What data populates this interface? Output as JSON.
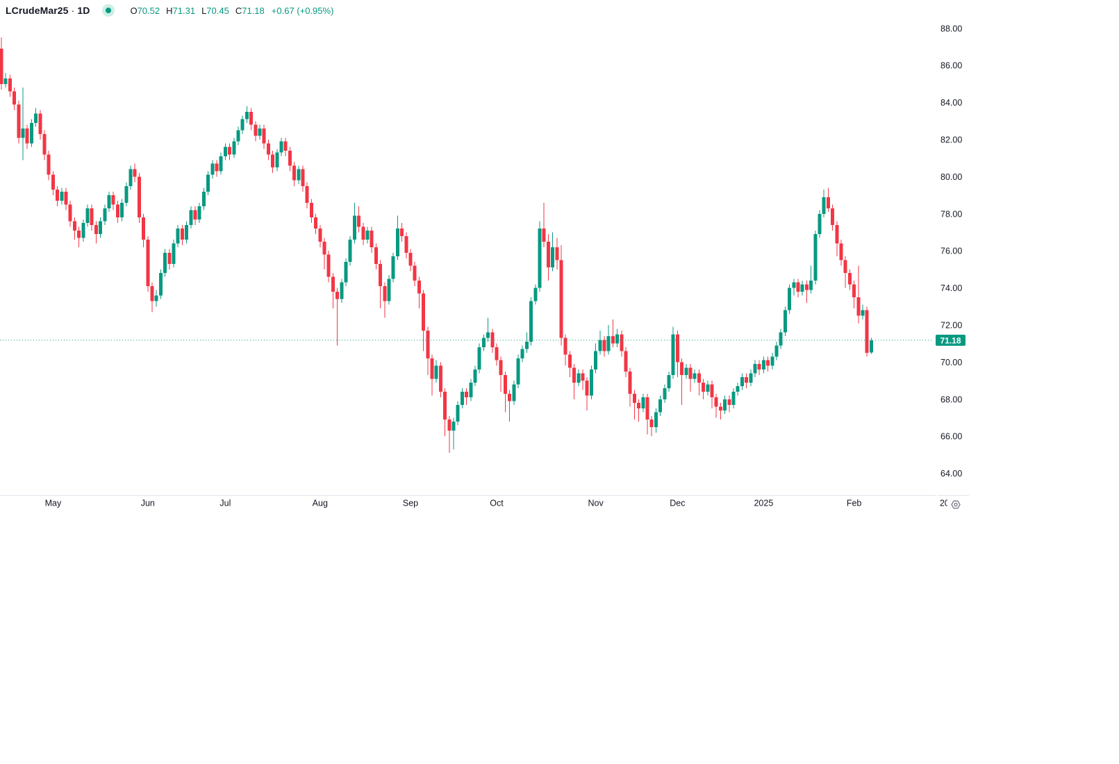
{
  "legend": {
    "symbol": "LCrudeMar25",
    "separator": "·",
    "interval": "1D",
    "open_label": "O",
    "open_value": "70.52",
    "high_label": "H",
    "high_value": "71.31",
    "low_label": "L",
    "low_value": "70.45",
    "close_label": "C",
    "close_value": "71.18",
    "change": "+0.67 (+0.95%)"
  },
  "colors": {
    "up": "#089981",
    "down": "#F23645",
    "text": "#131722",
    "background": "#ffffff",
    "last_price_line": "#089981",
    "tag_background": "#089981",
    "tag_text": "#ffffff",
    "axis_line": "#e0e3eb",
    "gear": "#787b86",
    "status_dot": "#089981"
  },
  "price_axis": {
    "tag": "71.18",
    "labels": [
      {
        "text": "88.00",
        "value": 88
      },
      {
        "text": "86.00",
        "value": 86
      },
      {
        "text": "84.00",
        "value": 84
      },
      {
        "text": "82.00",
        "value": 82
      },
      {
        "text": "80.00",
        "value": 80
      },
      {
        "text": "78.00",
        "value": 78
      },
      {
        "text": "76.00",
        "value": 76
      },
      {
        "text": "74.00",
        "value": 74
      },
      {
        "text": "72.00",
        "value": 72
      },
      {
        "text": "70.00",
        "value": 70
      },
      {
        "text": "68.00",
        "value": 68
      },
      {
        "text": "66.00",
        "value": 66
      },
      {
        "text": "64.00",
        "value": 64
      }
    ]
  },
  "time_axis": {
    "labels": [
      {
        "text": "May",
        "index": 12
      },
      {
        "text": "Jun",
        "index": 34
      },
      {
        "text": "Jul",
        "index": 52
      },
      {
        "text": "Aug",
        "index": 74
      },
      {
        "text": "Sep",
        "index": 95
      },
      {
        "text": "Oct",
        "index": 115
      },
      {
        "text": "Nov",
        "index": 138
      },
      {
        "text": "Dec",
        "index": 157
      },
      {
        "text": "2025",
        "index": 177
      },
      {
        "text": "Feb",
        "index": 198
      },
      {
        "text": "20",
        "index": 219,
        "clipped": true
      }
    ]
  },
  "chart_data": {
    "type": "candlestick",
    "title": "LCrudeMar25 daily candlestick chart, Apr 2024 - Feb 2025",
    "last_price": 71.18,
    "price_axis_range": [
      62.8,
      89.6
    ],
    "grid": false,
    "candles": [
      [
        86.9,
        87.5,
        84.7,
        85.0
      ],
      [
        85.0,
        85.6,
        84.8,
        85.3
      ],
      [
        85.3,
        85.5,
        84.3,
        84.6
      ],
      [
        84.6,
        84.8,
        83.6,
        83.9
      ],
      [
        83.9,
        84.1,
        81.8,
        82.1
      ],
      [
        82.1,
        84.8,
        80.9,
        82.6
      ],
      [
        82.6,
        82.8,
        81.5,
        81.8
      ],
      [
        81.8,
        83.1,
        81.6,
        82.9
      ],
      [
        82.9,
        83.7,
        82.7,
        83.4
      ],
      [
        83.4,
        83.6,
        82.0,
        82.3
      ],
      [
        82.3,
        82.5,
        80.9,
        81.2
      ],
      [
        81.2,
        81.4,
        79.8,
        80.1
      ],
      [
        80.1,
        80.3,
        79.0,
        79.3
      ],
      [
        79.3,
        79.5,
        78.4,
        78.7
      ],
      [
        78.7,
        79.4,
        78.5,
        79.2
      ],
      [
        79.2,
        79.4,
        78.2,
        78.5
      ],
      [
        78.5,
        78.7,
        77.3,
        77.6
      ],
      [
        77.6,
        77.8,
        76.6,
        77.1
      ],
      [
        77.1,
        77.3,
        76.2,
        76.7
      ],
      [
        76.7,
        77.7,
        76.5,
        77.5
      ],
      [
        77.5,
        78.5,
        77.3,
        78.3
      ],
      [
        78.3,
        78.5,
        77.1,
        77.4
      ],
      [
        77.4,
        77.6,
        76.4,
        76.9
      ],
      [
        76.9,
        77.8,
        76.7,
        77.6
      ],
      [
        77.6,
        78.5,
        77.4,
        78.3
      ],
      [
        78.3,
        79.2,
        78.1,
        79.0
      ],
      [
        79.0,
        79.2,
        78.2,
        78.5
      ],
      [
        78.5,
        78.7,
        77.5,
        77.8
      ],
      [
        77.8,
        78.8,
        77.6,
        78.6
      ],
      [
        78.6,
        79.7,
        78.4,
        79.5
      ],
      [
        79.5,
        80.6,
        79.3,
        80.4
      ],
      [
        80.4,
        80.7,
        79.7,
        80.0
      ],
      [
        80.0,
        80.2,
        77.5,
        77.8
      ],
      [
        77.8,
        78.0,
        76.2,
        76.6
      ],
      [
        76.6,
        76.8,
        73.8,
        74.1
      ],
      [
        74.1,
        74.3,
        72.7,
        73.3
      ],
      [
        73.3,
        73.9,
        73.0,
        73.6
      ],
      [
        73.6,
        75.0,
        73.4,
        74.8
      ],
      [
        74.8,
        76.1,
        74.6,
        75.9
      ],
      [
        75.9,
        76.1,
        75.0,
        75.3
      ],
      [
        75.3,
        76.6,
        75.1,
        76.4
      ],
      [
        76.4,
        77.4,
        76.2,
        77.2
      ],
      [
        77.2,
        77.4,
        76.3,
        76.6
      ],
      [
        76.6,
        77.6,
        76.4,
        77.4
      ],
      [
        77.4,
        78.4,
        77.2,
        78.2
      ],
      [
        78.2,
        78.4,
        77.4,
        77.7
      ],
      [
        77.7,
        78.6,
        77.5,
        78.4
      ],
      [
        78.4,
        79.4,
        78.2,
        79.2
      ],
      [
        79.2,
        80.3,
        79.0,
        80.1
      ],
      [
        80.1,
        80.9,
        79.9,
        80.7
      ],
      [
        80.7,
        80.9,
        80.0,
        80.3
      ],
      [
        80.3,
        81.3,
        80.1,
        81.1
      ],
      [
        81.1,
        81.8,
        80.9,
        81.6
      ],
      [
        81.6,
        81.8,
        80.9,
        81.2
      ],
      [
        81.2,
        82.1,
        81.0,
        81.9
      ],
      [
        81.9,
        82.7,
        81.7,
        82.5
      ],
      [
        82.5,
        83.3,
        82.3,
        83.1
      ],
      [
        83.1,
        83.8,
        82.9,
        83.5
      ],
      [
        83.5,
        83.7,
        82.5,
        82.8
      ],
      [
        82.8,
        83.0,
        81.9,
        82.2
      ],
      [
        82.2,
        82.8,
        82.0,
        82.6
      ],
      [
        82.6,
        82.8,
        81.5,
        81.8
      ],
      [
        81.8,
        82.0,
        80.9,
        81.2
      ],
      [
        81.2,
        81.4,
        80.2,
        80.5
      ],
      [
        80.5,
        81.5,
        80.3,
        81.3
      ],
      [
        81.3,
        82.1,
        81.1,
        81.9
      ],
      [
        81.9,
        82.1,
        81.1,
        81.4
      ],
      [
        81.4,
        81.6,
        80.3,
        80.6
      ],
      [
        80.6,
        80.8,
        79.5,
        79.8
      ],
      [
        79.8,
        80.6,
        79.6,
        80.4
      ],
      [
        80.4,
        80.6,
        79.2,
        79.5
      ],
      [
        79.5,
        79.7,
        78.3,
        78.6
      ],
      [
        78.6,
        78.8,
        77.5,
        77.8
      ],
      [
        77.8,
        78.0,
        76.9,
        77.2
      ],
      [
        77.2,
        77.4,
        76.2,
        76.5
      ],
      [
        76.5,
        76.7,
        75.0,
        75.8
      ],
      [
        75.8,
        76.0,
        74.3,
        74.6
      ],
      [
        74.6,
        74.8,
        72.9,
        73.8
      ],
      [
        73.8,
        74.0,
        70.9,
        73.4
      ],
      [
        73.4,
        74.5,
        73.2,
        74.3
      ],
      [
        74.3,
        75.6,
        74.1,
        75.4
      ],
      [
        75.4,
        76.8,
        75.2,
        76.6
      ],
      [
        76.6,
        78.6,
        76.4,
        77.9
      ],
      [
        77.9,
        78.4,
        77.0,
        77.3
      ],
      [
        77.3,
        77.5,
        76.3,
        76.6
      ],
      [
        76.6,
        77.3,
        76.4,
        77.1
      ],
      [
        77.1,
        77.3,
        75.9,
        76.2
      ],
      [
        76.2,
        76.4,
        75.0,
        75.3
      ],
      [
        75.3,
        75.5,
        72.9,
        74.1
      ],
      [
        74.1,
        74.3,
        72.4,
        73.3
      ],
      [
        73.3,
        74.7,
        73.1,
        74.5
      ],
      [
        74.5,
        75.9,
        74.3,
        75.7
      ],
      [
        75.7,
        77.9,
        75.5,
        77.2
      ],
      [
        77.2,
        77.5,
        76.5,
        76.8
      ],
      [
        76.8,
        77.0,
        75.6,
        75.9
      ],
      [
        75.9,
        76.1,
        74.9,
        75.2
      ],
      [
        75.2,
        75.4,
        74.1,
        74.4
      ],
      [
        74.4,
        74.6,
        72.9,
        73.7
      ],
      [
        73.7,
        73.9,
        70.6,
        71.7
      ],
      [
        71.7,
        71.9,
        69.3,
        70.2
      ],
      [
        70.2,
        70.4,
        68.2,
        69.1
      ],
      [
        69.1,
        70.1,
        68.9,
        69.8
      ],
      [
        69.8,
        70.0,
        68.1,
        68.4
      ],
      [
        68.4,
        68.6,
        66.0,
        66.9
      ],
      [
        66.9,
        67.1,
        65.1,
        66.3
      ],
      [
        66.3,
        67.0,
        65.3,
        66.8
      ],
      [
        66.8,
        67.9,
        66.6,
        67.7
      ],
      [
        67.7,
        68.6,
        67.5,
        68.4
      ],
      [
        68.4,
        68.6,
        67.7,
        68.1
      ],
      [
        68.1,
        69.1,
        67.9,
        68.9
      ],
      [
        68.9,
        69.8,
        68.7,
        69.6
      ],
      [
        69.6,
        71.0,
        69.4,
        70.8
      ],
      [
        70.8,
        71.5,
        70.6,
        71.3
      ],
      [
        71.3,
        72.4,
        71.1,
        71.6
      ],
      [
        71.6,
        71.8,
        70.5,
        70.8
      ],
      [
        70.8,
        71.0,
        69.8,
        70.1
      ],
      [
        70.1,
        70.3,
        68.4,
        69.3
      ],
      [
        69.3,
        69.5,
        67.3,
        68.3
      ],
      [
        68.3,
        68.5,
        66.8,
        67.9
      ],
      [
        67.9,
        69.0,
        67.7,
        68.8
      ],
      [
        68.8,
        70.4,
        68.6,
        70.2
      ],
      [
        70.2,
        70.9,
        70.0,
        70.7
      ],
      [
        70.7,
        71.6,
        70.5,
        71.1
      ],
      [
        71.1,
        73.5,
        70.9,
        73.3
      ],
      [
        73.3,
        74.2,
        73.1,
        74.0
      ],
      [
        74.0,
        77.6,
        73.8,
        77.2
      ],
      [
        77.2,
        78.6,
        76.2,
        76.5
      ],
      [
        76.5,
        76.9,
        74.4,
        75.1
      ],
      [
        75.1,
        77.0,
        74.9,
        76.2
      ],
      [
        76.2,
        76.7,
        75.0,
        75.5
      ],
      [
        75.5,
        76.3,
        70.9,
        71.3
      ],
      [
        71.3,
        71.5,
        69.8,
        70.4
      ],
      [
        70.4,
        70.6,
        69.2,
        69.7
      ],
      [
        69.7,
        69.9,
        68.0,
        68.9
      ],
      [
        68.9,
        69.6,
        68.7,
        69.4
      ],
      [
        69.4,
        69.6,
        68.5,
        69.0
      ],
      [
        69.0,
        69.2,
        67.4,
        68.2
      ],
      [
        68.2,
        69.8,
        68.0,
        69.6
      ],
      [
        69.6,
        71.0,
        69.4,
        70.6
      ],
      [
        70.6,
        71.7,
        70.4,
        71.2
      ],
      [
        71.2,
        71.4,
        70.3,
        70.6
      ],
      [
        70.6,
        72.0,
        70.4,
        71.4
      ],
      [
        71.4,
        72.3,
        70.8,
        71.0
      ],
      [
        71.0,
        71.8,
        70.8,
        71.5
      ],
      [
        71.5,
        71.7,
        70.3,
        70.6
      ],
      [
        70.6,
        70.8,
        69.2,
        69.5
      ],
      [
        69.5,
        69.7,
        67.6,
        68.3
      ],
      [
        68.3,
        68.5,
        66.9,
        67.8
      ],
      [
        67.8,
        68.0,
        66.8,
        67.5
      ],
      [
        67.5,
        68.3,
        67.3,
        68.1
      ],
      [
        68.1,
        68.3,
        66.1,
        66.9
      ],
      [
        66.9,
        67.1,
        66.0,
        66.5
      ],
      [
        66.5,
        67.5,
        66.2,
        67.3
      ],
      [
        67.3,
        68.2,
        67.1,
        68.0
      ],
      [
        68.0,
        68.8,
        67.8,
        68.6
      ],
      [
        68.6,
        69.5,
        68.4,
        69.3
      ],
      [
        69.3,
        71.9,
        69.1,
        71.5
      ],
      [
        71.5,
        71.7,
        69.2,
        70.0
      ],
      [
        70.0,
        70.2,
        67.7,
        69.3
      ],
      [
        69.3,
        69.9,
        69.1,
        69.7
      ],
      [
        69.7,
        69.9,
        68.4,
        69.1
      ],
      [
        69.1,
        69.6,
        68.9,
        69.4
      ],
      [
        69.4,
        69.6,
        68.2,
        68.9
      ],
      [
        68.9,
        69.1,
        68.0,
        68.4
      ],
      [
        68.4,
        69.0,
        68.2,
        68.8
      ],
      [
        68.8,
        69.0,
        67.5,
        68.1
      ],
      [
        68.1,
        68.3,
        67.0,
        67.6
      ],
      [
        67.6,
        67.8,
        66.9,
        67.4
      ],
      [
        67.4,
        68.2,
        67.2,
        68.0
      ],
      [
        68.0,
        68.2,
        67.3,
        67.7
      ],
      [
        67.7,
        68.6,
        67.5,
        68.4
      ],
      [
        68.4,
        68.9,
        68.2,
        68.7
      ],
      [
        68.7,
        69.4,
        68.5,
        69.2
      ],
      [
        69.2,
        69.4,
        68.6,
        68.9
      ],
      [
        68.9,
        69.6,
        68.7,
        69.4
      ],
      [
        69.4,
        70.1,
        69.2,
        69.9
      ],
      [
        69.9,
        70.1,
        69.3,
        69.6
      ],
      [
        69.6,
        70.3,
        69.4,
        70.1
      ],
      [
        70.1,
        70.3,
        69.5,
        69.8
      ],
      [
        69.8,
        70.5,
        69.6,
        70.3
      ],
      [
        70.3,
        71.1,
        70.1,
        70.9
      ],
      [
        70.9,
        71.8,
        70.7,
        71.6
      ],
      [
        71.6,
        73.0,
        71.4,
        72.8
      ],
      [
        72.8,
        74.2,
        72.6,
        74.0
      ],
      [
        74.0,
        74.5,
        73.6,
        74.3
      ],
      [
        74.3,
        74.5,
        73.5,
        73.8
      ],
      [
        73.8,
        74.4,
        73.6,
        74.2
      ],
      [
        74.2,
        74.4,
        73.2,
        73.9
      ],
      [
        73.9,
        75.2,
        73.7,
        74.4
      ],
      [
        74.4,
        77.1,
        74.2,
        76.9
      ],
      [
        76.9,
        78.2,
        76.7,
        78.0
      ],
      [
        78.0,
        79.3,
        77.8,
        78.9
      ],
      [
        78.9,
        79.4,
        78.1,
        78.3
      ],
      [
        78.3,
        78.5,
        77.1,
        77.4
      ],
      [
        77.4,
        77.6,
        75.7,
        76.4
      ],
      [
        76.4,
        76.6,
        75.2,
        75.5
      ],
      [
        75.5,
        75.7,
        74.0,
        74.8
      ],
      [
        74.8,
        75.0,
        73.9,
        74.2
      ],
      [
        74.2,
        74.4,
        72.9,
        73.5
      ],
      [
        73.5,
        75.2,
        72.1,
        72.5
      ],
      [
        72.5,
        73.1,
        72.3,
        72.8
      ],
      [
        72.8,
        73.0,
        70.3,
        70.51
      ],
      [
        70.52,
        71.31,
        70.45,
        71.18
      ]
    ]
  }
}
